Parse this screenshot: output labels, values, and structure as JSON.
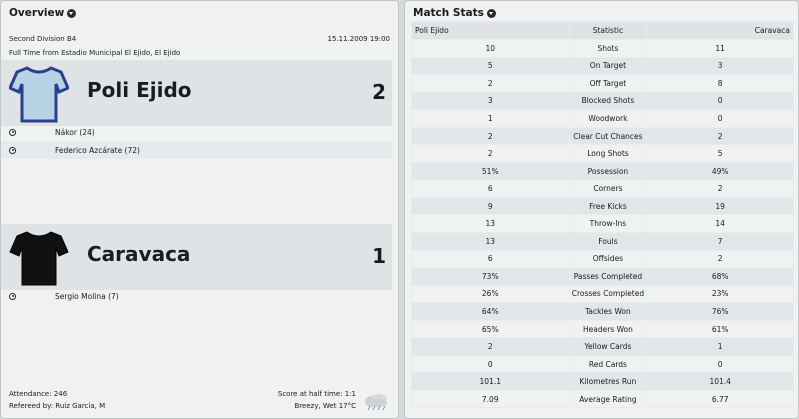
{
  "overview": {
    "title": "Overview",
    "division": "Second Division B4",
    "date": "15.11.2009 19:00",
    "venue": "Full Time from Estadio Municipal El Ejido, El Ejido",
    "home": {
      "name": "Poli Ejido",
      "score": "2",
      "shirt_color": "#b8d2e6",
      "shirt_trim": "#2a3f8f",
      "scorers": [
        "Nákor (24)",
        "Federico Azcárate (72)"
      ]
    },
    "away": {
      "name": "Caravaca",
      "score": "1",
      "shirt_color": "#111111",
      "scorers": [
        "Sergio Molina (7)"
      ]
    },
    "attendance": "Attendance: 246",
    "referee": "Refereed by: Ruiz García, M",
    "halftime": "Score at half time: 1:1",
    "weather": "Breezy, Wet 17°C",
    "weather_icon": "rain-cloud-icon"
  },
  "stats": {
    "title": "Match Stats",
    "headers": {
      "home": "Poli Ejido",
      "stat": "Statistic",
      "away": "Caravaca"
    },
    "rows": [
      {
        "home": "10",
        "stat": "Shots",
        "away": "11"
      },
      {
        "home": "5",
        "stat": "On Target",
        "away": "3"
      },
      {
        "home": "2",
        "stat": "Off Target",
        "away": "8"
      },
      {
        "home": "3",
        "stat": "Blocked Shots",
        "away": "0"
      },
      {
        "home": "1",
        "stat": "Woodwork",
        "away": "0"
      },
      {
        "home": "2",
        "stat": "Clear Cut Chances",
        "away": "2"
      },
      {
        "home": "2",
        "stat": "Long Shots",
        "away": "5"
      },
      {
        "home": "51%",
        "stat": "Possession",
        "away": "49%"
      },
      {
        "home": "6",
        "stat": "Corners",
        "away": "2"
      },
      {
        "home": "9",
        "stat": "Free Kicks",
        "away": "19"
      },
      {
        "home": "13",
        "stat": "Throw-Ins",
        "away": "14"
      },
      {
        "home": "13",
        "stat": "Fouls",
        "away": "7"
      },
      {
        "home": "6",
        "stat": "Offsides",
        "away": "2"
      },
      {
        "home": "73%",
        "stat": "Passes Completed",
        "away": "68%"
      },
      {
        "home": "26%",
        "stat": "Crosses Completed",
        "away": "23%"
      },
      {
        "home": "64%",
        "stat": "Tackles Won",
        "away": "76%"
      },
      {
        "home": "65%",
        "stat": "Headers Won",
        "away": "61%"
      },
      {
        "home": "2",
        "stat": "Yellow Cards",
        "away": "1"
      },
      {
        "home": "0",
        "stat": "Red Cards",
        "away": "0"
      },
      {
        "home": "101.1",
        "stat": "Kilometres Run",
        "away": "101.4"
      },
      {
        "home": "7.09",
        "stat": "Average Rating",
        "away": "6.77"
      }
    ]
  }
}
